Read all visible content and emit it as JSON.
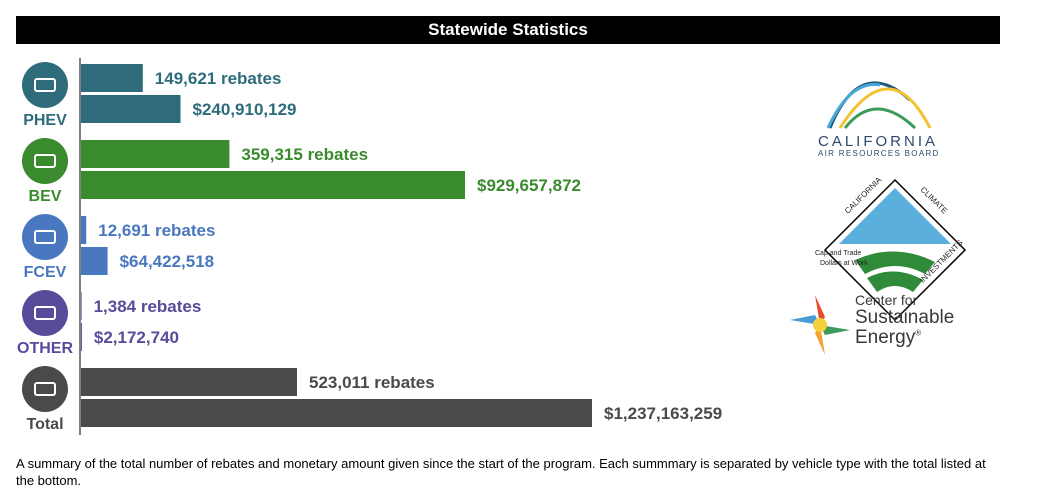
{
  "title": "Statewide Statistics",
  "caption": "A summary of the total number of rebates and monetary amount given since the start of the program. Each summmary is separated by vehicle type with the total listed at the bottom.",
  "chart_data": {
    "type": "bar",
    "orientation": "horizontal",
    "categories": [
      "PHEV",
      "BEV",
      "FCEV",
      "OTHER",
      "Total"
    ],
    "series": [
      {
        "metric": "rebates",
        "values": [
          149621,
          359315,
          12691,
          1384,
          523011
        ],
        "labels": [
          "149,621 rebates",
          "359,315 rebates",
          "12,691 rebates",
          "1,384 rebates",
          "523,011 rebates"
        ]
      },
      {
        "metric": "amount",
        "values": [
          240910129,
          929657872,
          64422518,
          2172740,
          1237163259
        ],
        "labels": [
          "$240,910,129",
          "$929,657,872",
          "$64,422,518",
          "$2,172,740",
          "$1,237,163,259"
        ]
      }
    ],
    "colors": [
      "#2e6b7b",
      "#3a8a2e",
      "#4a78c0",
      "#5a4a9a",
      "#4a4a4a"
    ],
    "icons": [
      "plug-in-hybrid-icon",
      "battery-electric-icon",
      "hydrogen-icon",
      "motorcycle-icon",
      "list-icon"
    ]
  },
  "logos": {
    "carb_name": "CALIFORNIA",
    "carb_sub": "AIR RESOURCES BOARD",
    "cci_top_left": "CALIFORNIA",
    "cci_top_right": "CLIMATE",
    "cci_bottom": "INVESTMENTS",
    "cci_line1": "Cap and Trade",
    "cci_line2": "Dollars at Work",
    "cse_line1": "Center for",
    "cse_line2": "Sustainable",
    "cse_line3": "Energy",
    "cse_mark": "®"
  }
}
